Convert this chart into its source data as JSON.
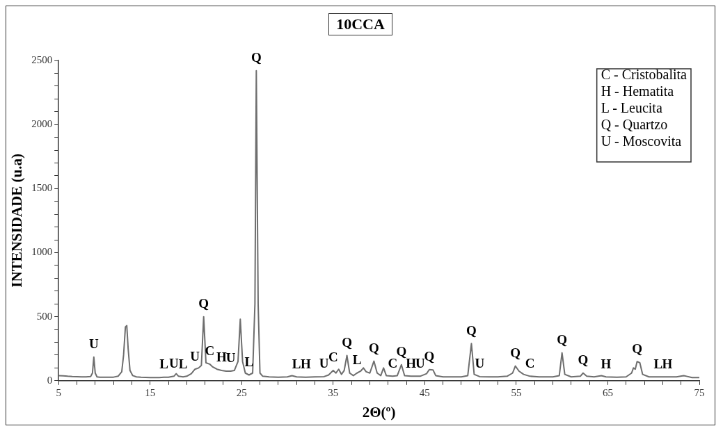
{
  "chart_data": {
    "type": "line",
    "title": "10CCA",
    "xlabel": "2Θ(º)",
    "ylabel": "INTENSIDADE (u.a)",
    "x": [
      5,
      5.5,
      6,
      6.5,
      7,
      7.5,
      8,
      8.5,
      8.7,
      8.85,
      9.0,
      9.2,
      9.5,
      10,
      10.5,
      11,
      11.5,
      11.9,
      12.1,
      12.3,
      12.45,
      12.6,
      12.8,
      13.1,
      13.5,
      14,
      15,
      16,
      16.5,
      17,
      17.6,
      17.85,
      18.1,
      18.6,
      19,
      19.5,
      19.9,
      20.3,
      20.6,
      20.85,
      21.1,
      21.5,
      21.8,
      22.3,
      22.8,
      23.3,
      23.8,
      24.2,
      24.6,
      24.85,
      25.1,
      25.4,
      25.8,
      26.2,
      26.45,
      26.6,
      26.8,
      27.0,
      27.3,
      28,
      29,
      30,
      30.5,
      31,
      32,
      33,
      34,
      34.5,
      35,
      35.3,
      35.6,
      35.9,
      36.2,
      36.5,
      36.8,
      37.2,
      37.6,
      38,
      38.3,
      38.6,
      39,
      39.45,
      39.8,
      40.2,
      40.5,
      40.8,
      41.5,
      42,
      42.45,
      42.8,
      43.5,
      44.5,
      45.2,
      45.5,
      45.9,
      46.2,
      47,
      48,
      49,
      49.7,
      50.1,
      50.4,
      51,
      52,
      53,
      54,
      54.6,
      54.9,
      55.3,
      55.8,
      56.5,
      57.5,
      59,
      59.7,
      60.0,
      60.3,
      61,
      62,
      62.3,
      62.7,
      63.5,
      64.3,
      64.8,
      66,
      67,
      67.6,
      67.8,
      68.0,
      68.2,
      68.5,
      68.8,
      69.5,
      70.5,
      71.5,
      72.5,
      73.3,
      73.6,
      74.2,
      75
    ],
    "series": [
      {
        "color": "#6e6e6e",
        "values": [
          40,
          38,
          35,
          33,
          32,
          30,
          30,
          33,
          60,
          185,
          60,
          30,
          28,
          27,
          27,
          28,
          35,
          70,
          200,
          420,
          430,
          250,
          80,
          40,
          30,
          27,
          25,
          25,
          28,
          27,
          35,
          55,
          35,
          30,
          35,
          55,
          90,
          100,
          120,
          500,
          140,
          130,
          110,
          90,
          80,
          75,
          75,
          80,
          150,
          480,
          150,
          60,
          45,
          60,
          600,
          2420,
          600,
          60,
          35,
          30,
          28,
          30,
          40,
          30,
          28,
          30,
          32,
          45,
          80,
          60,
          90,
          50,
          80,
          197,
          60,
          40,
          60,
          75,
          100,
          70,
          60,
          153,
          60,
          40,
          100,
          40,
          35,
          40,
          125,
          40,
          35,
          35,
          55,
          87,
          85,
          40,
          30,
          30,
          30,
          40,
          290,
          50,
          32,
          30,
          30,
          35,
          60,
          115,
          75,
          50,
          35,
          30,
          30,
          40,
          218,
          50,
          30,
          35,
          60,
          35,
          30,
          40,
          30,
          28,
          30,
          60,
          100,
          90,
          150,
          140,
          50,
          30,
          30,
          30,
          30,
          40,
          35,
          25,
          25
        ]
      }
    ],
    "xlim": [
      5,
      75
    ],
    "ylim": [
      0,
      2500
    ],
    "xticks": [
      5,
      {
        "value": 7,
        "label": null
      },
      {
        "value": 9,
        "label": null
      },
      {
        "value": 11,
        "label": null
      },
      {
        "value": 13,
        "label": null
      },
      15,
      {
        "value": 17,
        "label": null
      },
      {
        "value": 19,
        "label": null
      },
      {
        "value": 21,
        "label": null
      },
      {
        "value": 23,
        "label": null
      },
      25,
      {
        "value": 27,
        "label": null
      },
      {
        "value": 29,
        "label": null
      },
      {
        "value": 31,
        "label": null
      },
      {
        "value": 33,
        "label": null
      },
      35,
      {
        "value": 37,
        "label": null
      },
      {
        "value": 39,
        "label": null
      },
      {
        "value": 41,
        "label": null
      },
      {
        "value": 43,
        "label": null
      },
      45,
      {
        "value": 47,
        "label": null
      },
      {
        "value": 49,
        "label": null
      },
      {
        "value": 51,
        "label": null
      },
      {
        "value": 53,
        "label": null
      },
      55,
      {
        "value": 57,
        "label": null
      },
      {
        "value": 59,
        "label": null
      },
      {
        "value": 61,
        "label": null
      },
      {
        "value": 63,
        "label": null
      },
      65,
      {
        "value": 67,
        "label": null
      },
      {
        "value": 69,
        "label": null
      },
      {
        "value": 71,
        "label": null
      },
      {
        "value": 73,
        "label": null
      },
      75
    ],
    "yticks": [
      0,
      {
        "value": 100,
        "label": null
      },
      {
        "value": 200,
        "label": null
      },
      {
        "value": 300,
        "label": null
      },
      {
        "value": 400,
        "label": null
      },
      500,
      {
        "value": 600,
        "label": null
      },
      {
        "value": 700,
        "label": null
      },
      {
        "value": 800,
        "label": null
      },
      {
        "value": 900,
        "label": null
      },
      1000,
      {
        "value": 1100,
        "label": null
      },
      {
        "value": 1200,
        "label": null
      },
      {
        "value": 1300,
        "label": null
      },
      {
        "value": 1400,
        "label": null
      },
      1500,
      {
        "value": 1600,
        "label": null
      },
      {
        "value": 1700,
        "label": null
      },
      {
        "value": 1800,
        "label": null
      },
      {
        "value": 1900,
        "label": null
      },
      2000,
      {
        "value": 2100,
        "label": null
      },
      {
        "value": 2200,
        "label": null
      },
      {
        "value": 2300,
        "label": null
      },
      {
        "value": 2400,
        "label": null
      },
      2500
    ],
    "grid": false,
    "marker": "none",
    "line_style": "solid",
    "annotations": [
      "C - Cristobalita",
      "H - Hematita",
      "L - Leucita",
      "Q - Quartzo",
      "U - Moscovita",
      {
        "text": "U",
        "x": 8.85,
        "y": 185
      },
      {
        "text": "L",
        "x": 16.5,
        "y": 28
      },
      {
        "text": "U",
        "x": 17.6,
        "y": 35
      },
      {
        "text": "L",
        "x": 18.6,
        "y": 30
      },
      {
        "text": "U",
        "x": 19.9,
        "y": 90
      },
      {
        "text": "Q",
        "x": 20.85,
        "y": 500
      },
      {
        "text": "C",
        "x": 21.5,
        "y": 130
      },
      {
        "text": "H",
        "x": 22.8,
        "y": 80
      },
      {
        "text": "U",
        "x": 23.8,
        "y": 75
      },
      {
        "text": "L",
        "x": 25.8,
        "y": 45
      },
      {
        "text": "Q",
        "x": 26.6,
        "y": 2420
      },
      {
        "text": "L",
        "x": 31,
        "y": 30
      },
      {
        "text": "H",
        "x": 32,
        "y": 28
      },
      {
        "text": "U",
        "x": 34,
        "y": 32
      },
      {
        "text": "C",
        "x": 35,
        "y": 80
      },
      {
        "text": "Q",
        "x": 36.5,
        "y": 197
      },
      {
        "text": "L",
        "x": 37.6,
        "y": 60
      },
      {
        "text": "Q",
        "x": 39.45,
        "y": 153
      },
      {
        "text": "C",
        "x": 41.5,
        "y": 35
      },
      {
        "text": "Q",
        "x": 42.45,
        "y": 125
      },
      {
        "text": "H",
        "x": 43.5,
        "y": 35
      },
      {
        "text": "U",
        "x": 44.5,
        "y": 35
      },
      {
        "text": "Q",
        "x": 45.5,
        "y": 87
      },
      {
        "text": "Q",
        "x": 50.1,
        "y": 290
      },
      {
        "text": "U",
        "x": 51,
        "y": 32
      },
      {
        "text": "Q",
        "x": 54.9,
        "y": 115
      },
      {
        "text": "C",
        "x": 56.5,
        "y": 35
      },
      {
        "text": "Q",
        "x": 60.0,
        "y": 218
      },
      {
        "text": "Q",
        "x": 62.3,
        "y": 60
      },
      {
        "text": "H",
        "x": 64.8,
        "y": 30
      },
      {
        "text": "Q",
        "x": 68.2,
        "y": 150
      },
      {
        "text": "L",
        "x": 70.5,
        "y": 30
      },
      {
        "text": "H",
        "x": 71.5,
        "y": 30
      }
    ]
  }
}
